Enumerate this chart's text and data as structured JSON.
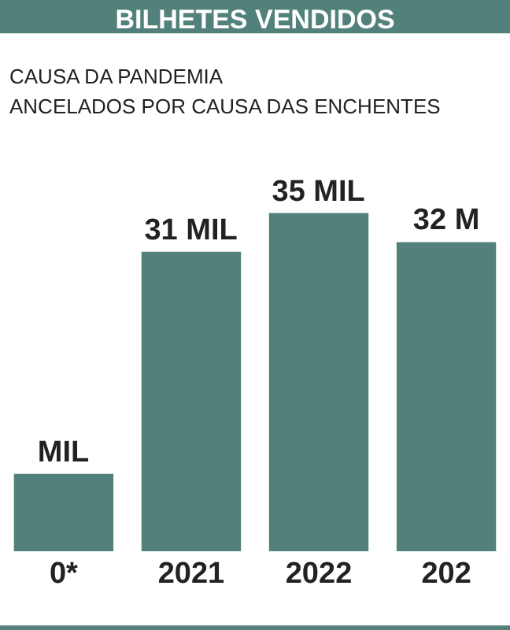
{
  "chart_data": {
    "type": "bar",
    "title": "BILHETES VENDIDOS",
    "annotations": [
      "CAUSA DA PANDEMIA",
      "ANCELADOS POR CAUSA DAS ENCHENTES"
    ],
    "categories": [
      "0*",
      "2021",
      "2022",
      "202"
    ],
    "values": [
      8,
      31,
      35,
      32
    ],
    "value_labels": [
      "MIL",
      "31 MIL",
      "35 MIL",
      "32 M"
    ],
    "color": "#52807a",
    "grid": false,
    "legend": false
  }
}
